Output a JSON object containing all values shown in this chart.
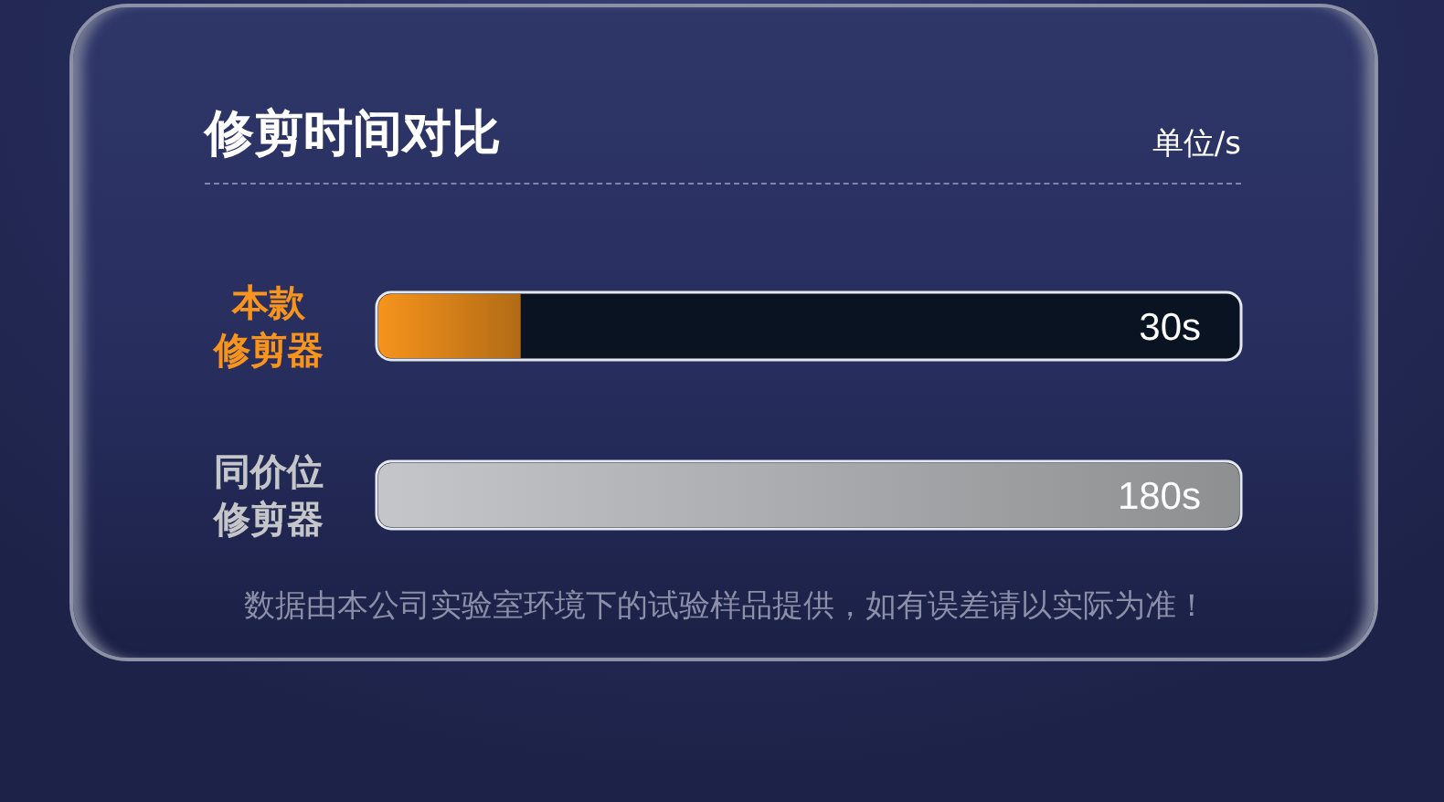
{
  "chart_data": {
    "type": "bar",
    "orientation": "horizontal",
    "title": "修剪时间对比",
    "categories": [
      "本款修剪器",
      "同价位修剪器"
    ],
    "values": [
      30,
      180
    ],
    "colors": [
      "#f7941d",
      "#c4c6c9"
    ],
    "value_labels": [
      "30s",
      "180s"
    ],
    "annotations": [
      "单位/s",
      "数据由本公司实验室环境下的试验样品提供，如有误差请以实际为准！"
    ]
  }
}
